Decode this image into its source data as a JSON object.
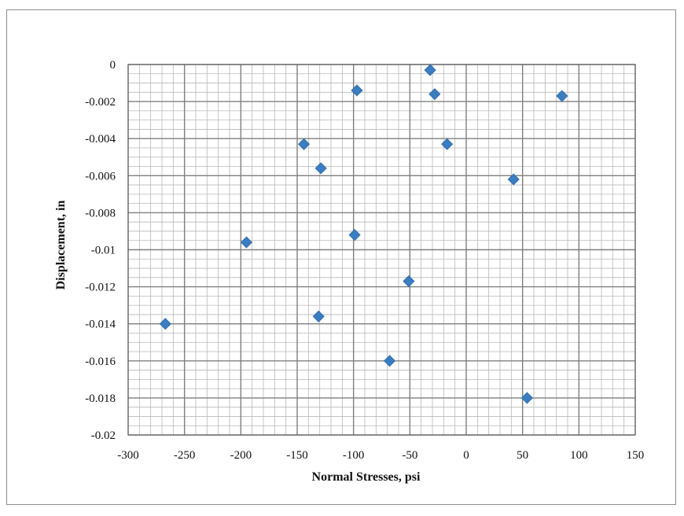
{
  "chart_data": {
    "type": "scatter",
    "xlabel": "Normal Stresses, psi",
    "ylabel": "Displacement, in",
    "xlim": [
      -300,
      150
    ],
    "ylim": [
      -0.02,
      0
    ],
    "x_ticks": [
      "-300",
      "-250",
      "-200",
      "-150",
      "-100",
      "-50",
      "0",
      "50",
      "100",
      "150"
    ],
    "y_ticks": [
      "0",
      "-0.002",
      "-0.004",
      "-0.006",
      "-0.008",
      "-0.01",
      "-0.012",
      "-0.014",
      "-0.016",
      "-0.018",
      "-0.02"
    ],
    "grid": true,
    "marker": "diamond",
    "color": "#3a7dc0",
    "points": [
      {
        "x": -32,
        "y": -0.0003
      },
      {
        "x": -97,
        "y": -0.0014
      },
      {
        "x": -28,
        "y": -0.0016
      },
      {
        "x": 85,
        "y": -0.0017
      },
      {
        "x": -144,
        "y": -0.0043
      },
      {
        "x": -17,
        "y": -0.0043
      },
      {
        "x": -129,
        "y": -0.0056
      },
      {
        "x": 42,
        "y": -0.0062
      },
      {
        "x": -195,
        "y": -0.0096
      },
      {
        "x": -99,
        "y": -0.0092
      },
      {
        "x": -51,
        "y": -0.0117
      },
      {
        "x": -267,
        "y": -0.014
      },
      {
        "x": -131,
        "y": -0.0136
      },
      {
        "x": -68,
        "y": -0.016
      },
      {
        "x": 54,
        "y": -0.018
      }
    ]
  }
}
